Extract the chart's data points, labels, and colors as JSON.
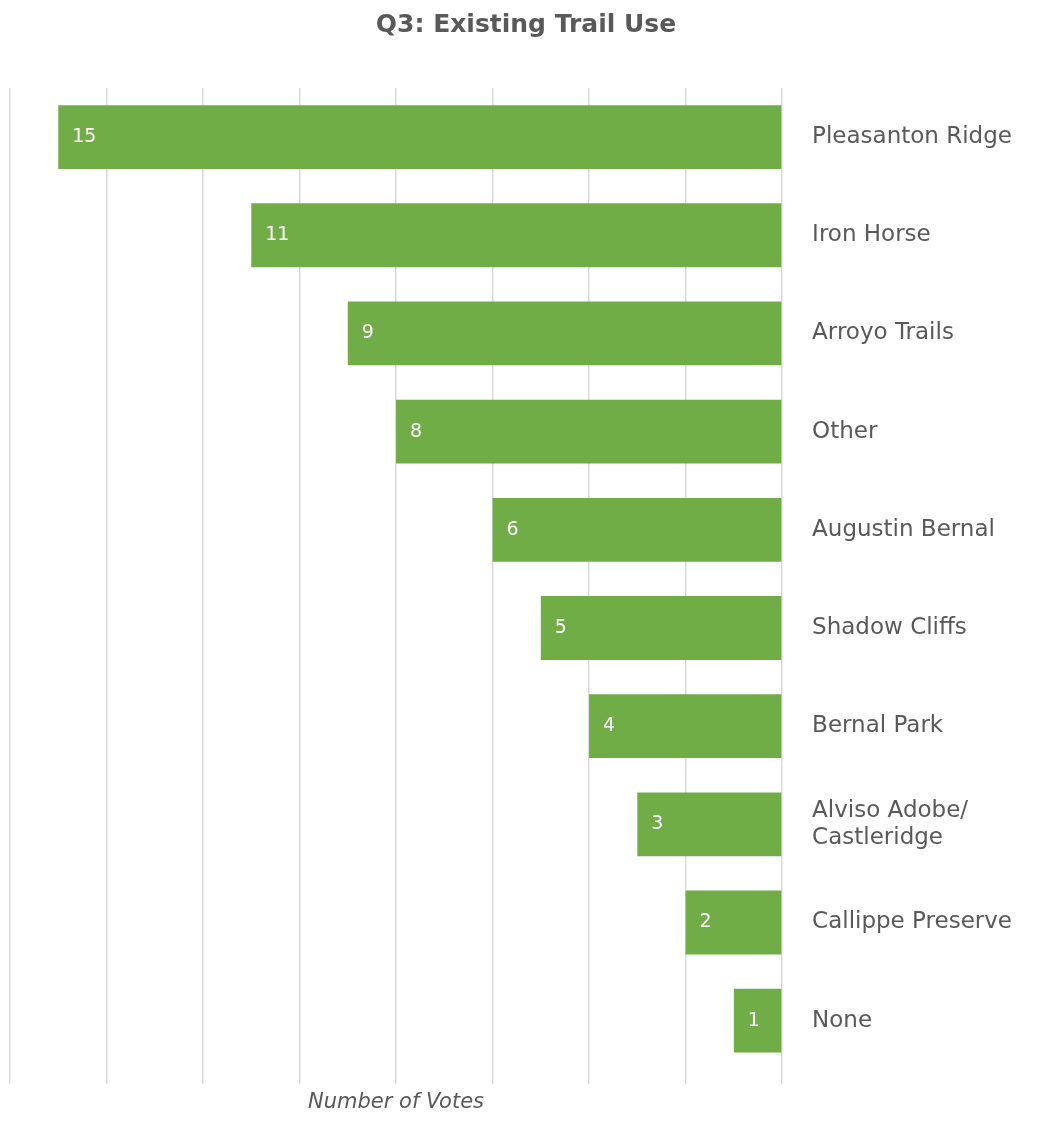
{
  "chart_data": {
    "type": "bar",
    "orientation": "horizontal",
    "title": "Q3: Existing Trail Use",
    "xlabel": "Number of Votes",
    "categories": [
      "Pleasanton Ridge",
      "Iron Horse",
      "Arroyo Trails",
      "Other",
      "Augustin Bernal",
      "Shadow Cliffs",
      "Bernal Park",
      "Alviso Adobe/ Castleridge",
      "Callippe Preserve",
      "None"
    ],
    "values": [
      15,
      11,
      9,
      8,
      6,
      5,
      4,
      3,
      2,
      1
    ],
    "color": "#70ad47",
    "xlim": [
      16,
      0
    ],
    "xticks": [
      {
        "value": 16,
        "label": null
      },
      {
        "value": 14,
        "label": null
      },
      {
        "value": 12,
        "label": null
      },
      {
        "value": 10,
        "label": null
      },
      {
        "value": 8,
        "label": null
      },
      {
        "value": 6,
        "label": null
      },
      {
        "value": 4,
        "label": null
      },
      {
        "value": 2,
        "label": null
      },
      {
        "value": 0,
        "label": null
      }
    ],
    "tick_labels": "y",
    "grid": "x",
    "data_labels": true,
    "legend": false
  }
}
